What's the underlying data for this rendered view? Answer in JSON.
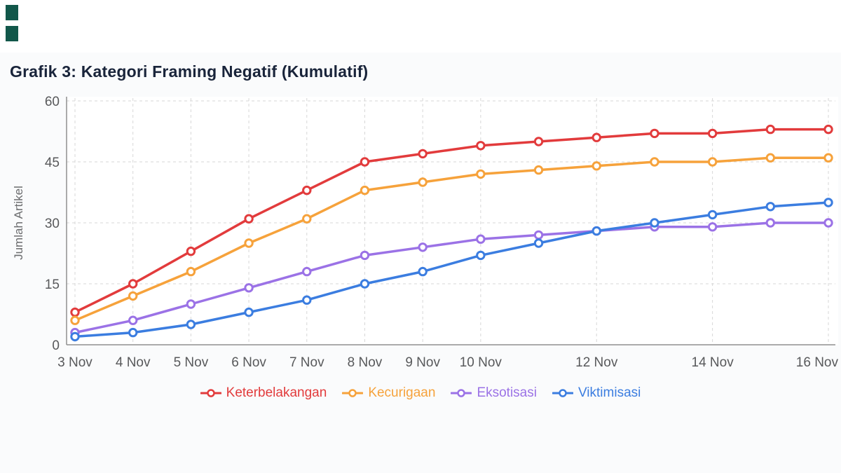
{
  "page": {
    "title": "Grafik 3: Kategori Framing Negatif (Kumulatif)",
    "corner_marks_color": "#11574a",
    "panel_background": "#fafbfc"
  },
  "chart_data": {
    "type": "line",
    "title": "Grafik 3: Kategori Framing Negatif (Kumulatif)",
    "xlabel": "",
    "ylabel": "Jumlah Artikel",
    "ylim": [
      0,
      60
    ],
    "yticks": [
      0,
      15,
      30,
      45,
      60
    ],
    "x_days": [
      3,
      4,
      5,
      6,
      7,
      8,
      9,
      10,
      11,
      12,
      13,
      14,
      15,
      16
    ],
    "x_range": [
      3,
      16
    ],
    "xtick_days": [
      3,
      4,
      5,
      6,
      7,
      8,
      9,
      10,
      12,
      14,
      16
    ],
    "xtick_labels": [
      "3 Nov",
      "4 Nov",
      "5 Nov",
      "6 Nov",
      "7 Nov",
      "8 Nov",
      "9 Nov",
      "10 Nov",
      "12 Nov",
      "14 Nov",
      "16 Nov"
    ],
    "grid": "dashed",
    "grid_color": "#d7d7d7",
    "axis_color": "#8f8f8f",
    "legend_position": "bottom",
    "series": [
      {
        "name": "Keterbelakangan",
        "color": "#e23b3c",
        "values": [
          8,
          15,
          23,
          31,
          38,
          45,
          47,
          49,
          50,
          51,
          52,
          52,
          53,
          53
        ]
      },
      {
        "name": "Kecurigaan",
        "color": "#f6a23b",
        "values": [
          6,
          12,
          18,
          25,
          31,
          38,
          40,
          42,
          43,
          44,
          45,
          45,
          46,
          46
        ]
      },
      {
        "name": "Eksotisasi",
        "color": "#9b72e6",
        "values": [
          3,
          6,
          10,
          14,
          18,
          22,
          24,
          26,
          27,
          28,
          29,
          29,
          30,
          30
        ]
      },
      {
        "name": "Viktimisasi",
        "color": "#3b7de0",
        "values": [
          2,
          3,
          5,
          8,
          11,
          15,
          18,
          22,
          25,
          28,
          30,
          32,
          34,
          35
        ]
      }
    ]
  }
}
